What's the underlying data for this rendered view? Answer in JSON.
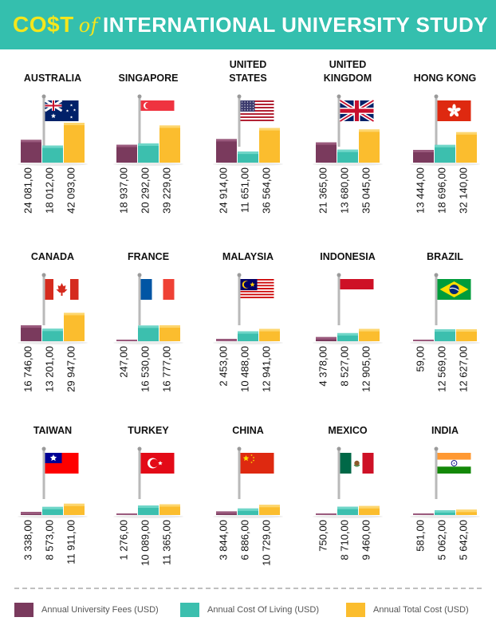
{
  "title": {
    "cost": "CO$T",
    "of": "of",
    "rest": "INTERNATIONAL UNIVERSITY STUDY"
  },
  "colors": {
    "header": "#34bfae",
    "fees": "#7a3a5d",
    "living": "#3cbfae",
    "total": "#fbbd2e"
  },
  "chart_data": {
    "type": "bar",
    "series": [
      {
        "name": "Annual University Fees (USD)",
        "color": "#7a3a5d"
      },
      {
        "name": "Annual Cost Of Living (USD)",
        "color": "#3cbfae"
      },
      {
        "name": "Annual Total Cost (USD)",
        "color": "#fbbd2e"
      }
    ],
    "countries": [
      {
        "name": [
          "AUSTRALIA"
        ],
        "flag": "flag-australia",
        "values": [
          24081,
          18012,
          42093
        ],
        "labels": [
          "24 081,00",
          "18 012,00",
          "42 093,00"
        ]
      },
      {
        "name": [
          "SINGAPORE"
        ],
        "flag": "flag-singapore",
        "values": [
          18937,
          20292,
          39229
        ],
        "labels": [
          "18 937,00",
          "20 292,00",
          "39 229,00"
        ]
      },
      {
        "name": [
          "UNITED",
          "STATES"
        ],
        "flag": "flag-usa",
        "values": [
          24914,
          11651,
          36564
        ],
        "labels": [
          "24 914,00",
          "11 651,00",
          "36 564,00"
        ]
      },
      {
        "name": [
          "UNITED",
          "KINGDOM"
        ],
        "flag": "flag-uk",
        "values": [
          21365,
          13680,
          35045
        ],
        "labels": [
          "21 365,00",
          "13 680,00",
          "35 045,00"
        ]
      },
      {
        "name": [
          "HONG KONG"
        ],
        "flag": "flag-hong-kong",
        "values": [
          13444,
          18696,
          32140
        ],
        "labels": [
          "13 444,00",
          "18 696,00",
          "32 140,00"
        ]
      },
      {
        "name": [
          "CANADA"
        ],
        "flag": "flag-canada",
        "values": [
          16746,
          13201,
          29947
        ],
        "labels": [
          "16 746,00",
          "13 201,00",
          "29 947,00"
        ]
      },
      {
        "name": [
          "FRANCE"
        ],
        "flag": "flag-france",
        "values": [
          247,
          16530,
          16777
        ],
        "labels": [
          "247,00",
          "16 530,00",
          "16 777,00"
        ]
      },
      {
        "name": [
          "MALAYSIA"
        ],
        "flag": "flag-malaysia",
        "values": [
          2453,
          10488,
          12941
        ],
        "labels": [
          "2 453,00",
          "10 488,00",
          "12 941,00"
        ]
      },
      {
        "name": [
          "INDONESIA"
        ],
        "flag": "flag-indonesia",
        "values": [
          4378,
          8527,
          12905
        ],
        "labels": [
          "4 378,00",
          "8 527,00",
          "12 905,00"
        ]
      },
      {
        "name": [
          "BRAZIL"
        ],
        "flag": "flag-brazil",
        "values": [
          59,
          12569,
          12627
        ],
        "labels": [
          "59,00",
          "12 569,00",
          "12 627,00"
        ]
      },
      {
        "name": [
          "TAIWAN"
        ],
        "flag": "flag-taiwan",
        "values": [
          3338,
          8573,
          11911
        ],
        "labels": [
          "3 338,00",
          "8 573,00",
          "11 911,00"
        ]
      },
      {
        "name": [
          "TURKEY"
        ],
        "flag": "flag-turkey",
        "values": [
          1276,
          10089,
          11365
        ],
        "labels": [
          "1 276,00",
          "10 089,00",
          "11 365,00"
        ]
      },
      {
        "name": [
          "CHINA"
        ],
        "flag": "flag-china",
        "values": [
          3844,
          6886,
          10729
        ],
        "labels": [
          "3 844,00",
          "6 886,00",
          "10 729,00"
        ]
      },
      {
        "name": [
          "MEXICO"
        ],
        "flag": "flag-mexico",
        "values": [
          750,
          8710,
          9460
        ],
        "labels": [
          "750,00",
          "8 710,00",
          "9 460,00"
        ]
      },
      {
        "name": [
          "INDIA"
        ],
        "flag": "flag-india",
        "values": [
          581,
          5062,
          5642
        ],
        "labels": [
          "581,00",
          "5 062,00",
          "5 642,00"
        ]
      }
    ]
  }
}
